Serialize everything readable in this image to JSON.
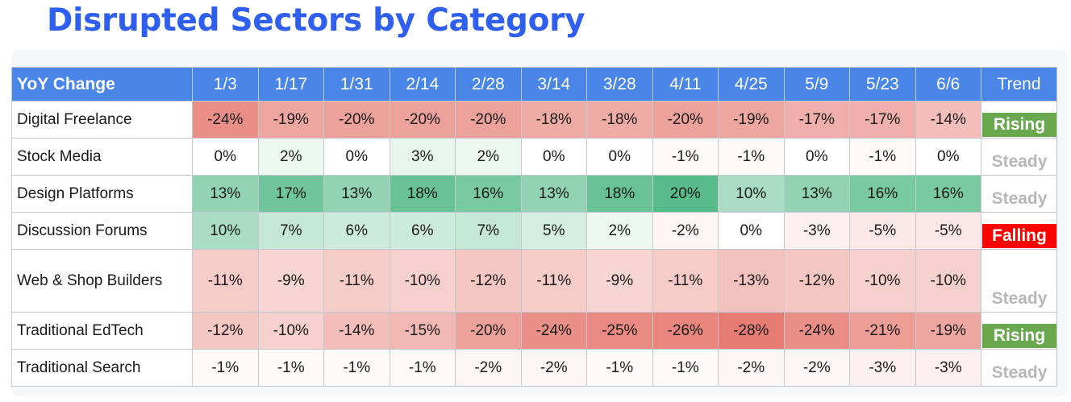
{
  "title": "Disrupted Sectors by Category",
  "chart_data": {
    "type": "table",
    "corner_header": "YoY Change",
    "columns": [
      "1/3",
      "1/17",
      "1/31",
      "2/14",
      "2/28",
      "3/14",
      "3/28",
      "4/11",
      "4/25",
      "5/9",
      "5/23",
      "6/6"
    ],
    "trend_header": "Trend",
    "rows": [
      {
        "label": "Digital Freelance",
        "values": [
          -24,
          -19,
          -20,
          -20,
          -20,
          -18,
          -18,
          -20,
          -19,
          -17,
          -17,
          -14
        ],
        "trend": "Rising"
      },
      {
        "label": "Stock Media",
        "values": [
          0,
          2,
          0,
          3,
          2,
          0,
          0,
          -1,
          -1,
          0,
          -1,
          0
        ],
        "trend": "Steady"
      },
      {
        "label": "Design Platforms",
        "values": [
          13,
          17,
          13,
          18,
          16,
          13,
          18,
          20,
          10,
          13,
          16,
          16
        ],
        "trend": "Steady"
      },
      {
        "label": "Discussion Forums",
        "values": [
          10,
          7,
          6,
          6,
          7,
          5,
          2,
          -2,
          0,
          -3,
          -5,
          -5
        ],
        "trend": "Falling"
      },
      {
        "label": "Web & Shop Builders",
        "values": [
          -11,
          -9,
          -11,
          -10,
          -12,
          -11,
          -9,
          -11,
          -13,
          -12,
          -10,
          -10
        ],
        "trend": "Steady"
      },
      {
        "label": "Traditional EdTech",
        "values": [
          -12,
          -10,
          -14,
          -15,
          -20,
          -24,
          -25,
          -26,
          -28,
          -24,
          -21,
          -19
        ],
        "trend": "Rising"
      },
      {
        "label": "Traditional Search",
        "values": [
          -1,
          -1,
          -1,
          -1,
          -2,
          -2,
          -1,
          -1,
          -2,
          -2,
          -3,
          -3
        ],
        "trend": "Steady"
      }
    ],
    "unit": "%"
  },
  "colors": {
    "title": "#2f5ff0",
    "header_bg": "#4a86e8",
    "negative_max": "#e67c73",
    "positive_max": "#57bb8a",
    "neutral": "#ffffff",
    "trend_rising": "#6aa84f",
    "trend_falling": "#ff0000",
    "trend_steady_text": "#b7b7b7"
  }
}
